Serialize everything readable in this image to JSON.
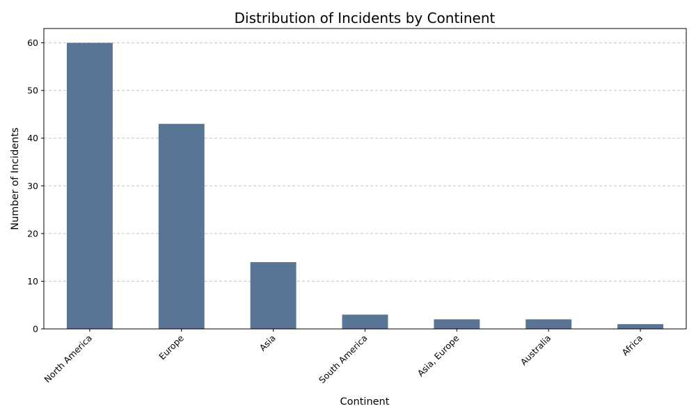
{
  "chart_data": {
    "type": "bar",
    "title": "Distribution of Incidents by Continent",
    "xlabel": "Continent",
    "ylabel": "Number of Incidents",
    "categories": [
      "North America",
      "Europe",
      "Asia",
      "South America",
      "Asia, Europe",
      "Australia",
      "Africa"
    ],
    "values": [
      60,
      43,
      14,
      3,
      2,
      2,
      1
    ],
    "ylim": [
      0,
      63
    ],
    "yticks": [
      0,
      10,
      20,
      30,
      40,
      50,
      60
    ],
    "grid": "y-dashed",
    "bar_color": "#587596",
    "xtick_rotation": 45
  }
}
